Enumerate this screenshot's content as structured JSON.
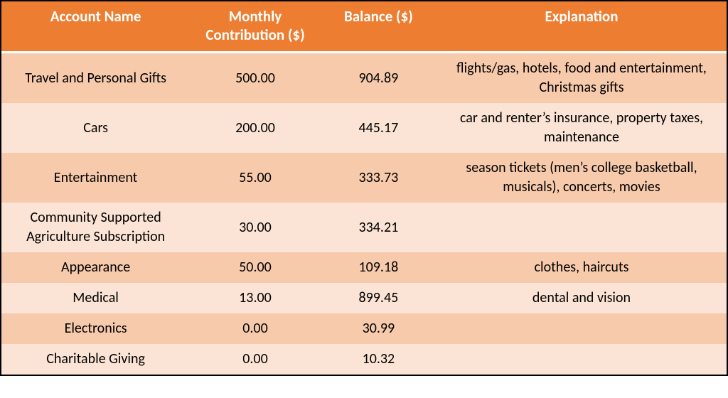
{
  "table": {
    "header_bg": "#ed7d31",
    "header_fg": "#ffffff",
    "row_bg_odd": "#f7caac",
    "row_bg_even": "#fbe4d5",
    "border_color": "#000000",
    "header_divider_color": "#ffffff",
    "font_family": "Calibri",
    "header_fontsize": 21,
    "body_fontsize": 20,
    "columns": [
      {
        "key": "name",
        "label": "Account Name",
        "width_pct": 26
      },
      {
        "key": "contrib",
        "label": "Monthly Contribution ($)",
        "width_pct": 18
      },
      {
        "key": "balance",
        "label": "Balance ($)",
        "width_pct": 16
      },
      {
        "key": "expl",
        "label": "Explanation",
        "width_pct": 40
      }
    ],
    "rows": [
      {
        "name": "Travel and Personal Gifts",
        "contrib": "500.00",
        "balance": "904.89",
        "expl": "flights/gas, hotels, food and entertainment, Christmas gifts"
      },
      {
        "name": "Cars",
        "contrib": "200.00",
        "balance": "445.17",
        "expl": "car and renter’s insurance, property taxes, maintenance"
      },
      {
        "name": "Entertainment",
        "contrib": "55.00",
        "balance": "333.73",
        "expl": "season tickets (men’s college basketball, musicals), concerts, movies"
      },
      {
        "name": "Community Supported Agriculture Subscription",
        "contrib": "30.00",
        "balance": "334.21",
        "expl": ""
      },
      {
        "name": "Appearance",
        "contrib": "50.00",
        "balance": "109.18",
        "expl": "clothes, haircuts"
      },
      {
        "name": "Medical",
        "contrib": "13.00",
        "balance": "899.45",
        "expl": "dental and vision"
      },
      {
        "name": "Electronics",
        "contrib": "0.00",
        "balance": "30.99",
        "expl": ""
      },
      {
        "name": "Charitable Giving",
        "contrib": "0.00",
        "balance": "10.32",
        "expl": ""
      }
    ]
  }
}
